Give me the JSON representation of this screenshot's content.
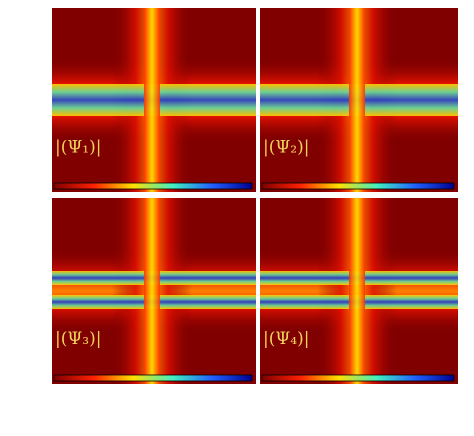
{
  "panels": [
    {
      "label": "|(Ψ₁)|"
    },
    {
      "label": "|(Ψ₂)|"
    },
    {
      "label": "|(Ψ₃)|"
    },
    {
      "label": "|(Ψ₄)|"
    }
  ]
}
